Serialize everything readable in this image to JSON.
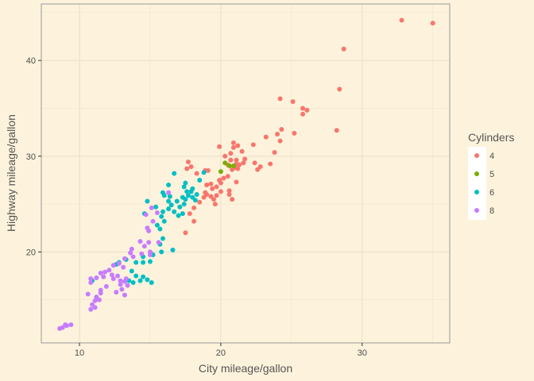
{
  "chart_data": {
    "type": "scatter",
    "xlabel": "City mileage/gallon",
    "ylabel": "Highway mileage/gallon",
    "xlim": [
      7.3,
      36.2
    ],
    "ylim": [
      10.5,
      45.9
    ],
    "x_ticks": [
      10,
      20,
      30
    ],
    "y_ticks": [
      20,
      30,
      40
    ],
    "grid": true,
    "legend_position": "right",
    "legend": {
      "title": "Cylinders",
      "entries": [
        {
          "label": "4",
          "color": "#f8766d"
        },
        {
          "label": "5",
          "color": "#7cae00"
        },
        {
          "label": "6",
          "color": "#00bfc4"
        },
        {
          "label": "8",
          "color": "#c77cff"
        }
      ]
    },
    "series": [
      {
        "name": "4",
        "color": "#f8766d",
        "points": [
          [
            32.8,
            44.2
          ],
          [
            35.0,
            43.9
          ],
          [
            28.7,
            41.2
          ],
          [
            28.4,
            37.0
          ],
          [
            24.2,
            36.0
          ],
          [
            25.1,
            35.7
          ],
          [
            25.8,
            35.0
          ],
          [
            26.1,
            34.8
          ],
          [
            25.8,
            34.4
          ],
          [
            24.3,
            32.8
          ],
          [
            28.2,
            32.7
          ],
          [
            24.0,
            32.3
          ],
          [
            25.2,
            32.4
          ],
          [
            24.2,
            31.6
          ],
          [
            23.2,
            32.0
          ],
          [
            22.3,
            31.2
          ],
          [
            20.9,
            31.4
          ],
          [
            21.2,
            31.1
          ],
          [
            20.9,
            30.9
          ],
          [
            21.5,
            30.5
          ],
          [
            19.9,
            31.0
          ],
          [
            23.8,
            30.4
          ],
          [
            20.3,
            30.0
          ],
          [
            20.7,
            30.3
          ],
          [
            20.7,
            29.6
          ],
          [
            20.5,
            29.1
          ],
          [
            21.1,
            29.6
          ],
          [
            21.7,
            29.7
          ],
          [
            21.1,
            29.2
          ],
          [
            21.3,
            29.1
          ],
          [
            21.6,
            29.3
          ],
          [
            22.4,
            29.3
          ],
          [
            21.0,
            28.8
          ],
          [
            21.2,
            28.7
          ],
          [
            20.8,
            28.6
          ],
          [
            22.8,
            28.9
          ],
          [
            23.5,
            29.2
          ],
          [
            22.6,
            28.6
          ],
          [
            17.7,
            29.4
          ],
          [
            17.9,
            28.9
          ],
          [
            18.9,
            28.5
          ],
          [
            19.1,
            28.5
          ],
          [
            18.3,
            28.2
          ],
          [
            17.6,
            28.7
          ],
          [
            20.5,
            27.9
          ],
          [
            20.2,
            27.7
          ],
          [
            19.9,
            27.5
          ],
          [
            21.1,
            27.3
          ],
          [
            20.0,
            27.2
          ],
          [
            19.3,
            27.1
          ],
          [
            19.0,
            27.0
          ],
          [
            19.7,
            26.8
          ],
          [
            20.6,
            26.4
          ],
          [
            19.4,
            26.6
          ],
          [
            18.9,
            26.2
          ],
          [
            20.0,
            26.3
          ],
          [
            19.0,
            26.0
          ],
          [
            19.3,
            25.8
          ],
          [
            20.6,
            26.0
          ],
          [
            20.8,
            25.5
          ],
          [
            19.7,
            25.9
          ],
          [
            18.8,
            25.7
          ],
          [
            19.5,
            25.5
          ],
          [
            18.5,
            25.2
          ],
          [
            19.6,
            25.0
          ],
          [
            18.1,
            24.6
          ],
          [
            17.8,
            24.0
          ],
          [
            17.5,
            22.0
          ],
          [
            18.1,
            23.2
          ]
        ]
      },
      {
        "name": "5",
        "color": "#7cae00",
        "points": [
          [
            20.0,
            28.4
          ],
          [
            20.3,
            29.3
          ],
          [
            20.9,
            29.0
          ],
          [
            20.6,
            29.0
          ]
        ]
      },
      {
        "name": "6",
        "color": "#00bfc4",
        "points": [
          [
            18.8,
            28.3
          ],
          [
            16.7,
            28.2
          ],
          [
            18.5,
            27.5
          ],
          [
            17.5,
            27.2
          ],
          [
            16.3,
            27.0
          ],
          [
            17.4,
            26.8
          ],
          [
            18.0,
            26.6
          ],
          [
            17.9,
            26.3
          ],
          [
            17.6,
            26.3
          ],
          [
            18.3,
            26.0
          ],
          [
            17.7,
            25.9
          ],
          [
            18.0,
            25.7
          ],
          [
            17.3,
            25.7
          ],
          [
            18.2,
            25.4
          ],
          [
            16.4,
            25.8
          ],
          [
            17.5,
            25.5
          ],
          [
            16.9,
            25.3
          ],
          [
            17.4,
            25.0
          ],
          [
            15.9,
            26.2
          ],
          [
            16.0,
            25.9
          ],
          [
            16.3,
            25.3
          ],
          [
            14.8,
            25.3
          ],
          [
            16.5,
            24.9
          ],
          [
            17.1,
            24.7
          ],
          [
            16.3,
            24.5
          ],
          [
            15.4,
            24.7
          ],
          [
            15.9,
            24.2
          ],
          [
            16.7,
            24.2
          ],
          [
            17.3,
            24.0
          ],
          [
            17.0,
            23.8
          ],
          [
            15.8,
            23.7
          ],
          [
            14.6,
            24.0
          ],
          [
            16.0,
            23.2
          ],
          [
            15.5,
            22.8
          ],
          [
            15.7,
            22.4
          ],
          [
            15.9,
            21.4
          ],
          [
            15.7,
            20.8
          ],
          [
            16.6,
            20.2
          ],
          [
            15.8,
            20.0
          ],
          [
            15.2,
            19.7
          ],
          [
            14.5,
            19.5
          ],
          [
            15.0,
            19.0
          ],
          [
            14.5,
            18.9
          ],
          [
            14.0,
            18.9
          ],
          [
            13.3,
            19.2
          ],
          [
            12.6,
            18.7
          ],
          [
            12.8,
            18.9
          ],
          [
            13.7,
            18.0
          ],
          [
            14.0,
            17.5
          ],
          [
            14.5,
            17.4
          ],
          [
            14.8,
            17.1
          ],
          [
            15.1,
            16.8
          ],
          [
            14.3,
            17.0
          ],
          [
            13.8,
            16.8
          ],
          [
            13.5,
            17.0
          ],
          [
            10.9,
            17.0
          ]
        ]
      },
      {
        "name": "8",
        "color": "#c77cff",
        "points": [
          [
            16.3,
            26.2
          ],
          [
            15.1,
            24.6
          ],
          [
            15.5,
            24.1
          ],
          [
            14.7,
            23.9
          ],
          [
            15.2,
            23.2
          ],
          [
            14.8,
            22.5
          ],
          [
            14.9,
            22.2
          ],
          [
            14.3,
            21.1
          ],
          [
            14.9,
            21.0
          ],
          [
            15.6,
            21.0
          ],
          [
            14.6,
            20.6
          ],
          [
            15.0,
            20.0
          ],
          [
            14.4,
            19.8
          ],
          [
            15.0,
            19.7
          ],
          [
            13.7,
            20.3
          ],
          [
            13.6,
            19.9
          ],
          [
            13.8,
            19.5
          ],
          [
            13.2,
            19.3
          ],
          [
            12.8,
            18.8
          ],
          [
            12.4,
            18.6
          ],
          [
            13.1,
            18.4
          ],
          [
            12.1,
            18.1
          ],
          [
            11.8,
            17.9
          ],
          [
            11.5,
            17.8
          ],
          [
            12.3,
            17.6
          ],
          [
            11.7,
            17.4
          ],
          [
            11.2,
            17.3
          ],
          [
            10.8,
            17.2
          ],
          [
            12.7,
            17.5
          ],
          [
            12.4,
            17.2
          ],
          [
            12.9,
            17.0
          ],
          [
            13.3,
            17.2
          ],
          [
            13.2,
            16.9
          ],
          [
            12.9,
            16.6
          ],
          [
            13.4,
            16.5
          ],
          [
            13.0,
            16.1
          ],
          [
            12.6,
            15.8
          ],
          [
            13.2,
            15.5
          ],
          [
            11.9,
            16.4
          ],
          [
            11.5,
            16.0
          ],
          [
            11.5,
            15.7
          ],
          [
            10.6,
            15.6
          ],
          [
            11.2,
            15.3
          ],
          [
            11.4,
            15.0
          ],
          [
            11.1,
            14.9
          ],
          [
            10.9,
            14.5
          ],
          [
            10.8,
            14.0
          ],
          [
            11.1,
            14.2
          ],
          [
            9.4,
            12.4
          ],
          [
            9.0,
            12.4
          ],
          [
            8.8,
            12.1
          ],
          [
            8.6,
            12.0
          ],
          [
            9.1,
            12.3
          ],
          [
            10.8,
            16.8
          ]
        ]
      }
    ]
  }
}
